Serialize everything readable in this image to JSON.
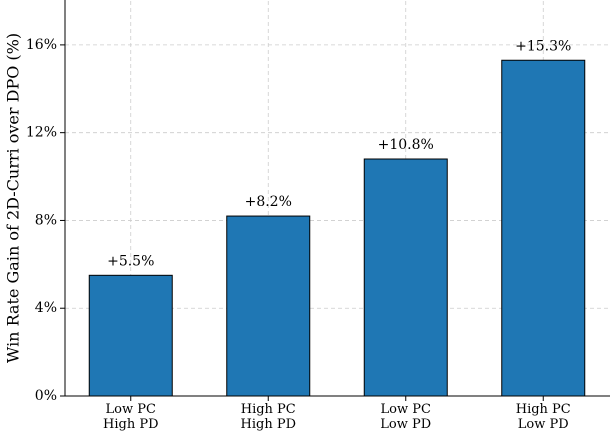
{
  "chart_data": {
    "type": "bar",
    "y_label": "Win Rate Gain of 2D-Curri over DPO (%)",
    "categories": [
      "Low PC\nHigh PD",
      "High PC\nHigh PD",
      "Low PC\nLow PD",
      "High PC\nLow PD"
    ],
    "values": [
      5.5,
      8.2,
      10.8,
      15.3
    ],
    "value_labels": [
      "+5.5%",
      "+8.2%",
      "+10.8%",
      "+15.3%"
    ],
    "color": "#1f77b4",
    "ylim": [
      0,
      18
    ],
    "yticks": [
      {
        "value": 0,
        "label": "0%"
      },
      {
        "value": 4,
        "label": "4%"
      },
      {
        "value": 8,
        "label": "8%"
      },
      {
        "value": 12,
        "label": "12%"
      },
      {
        "value": 16,
        "label": "16%"
      }
    ],
    "grid": true
  }
}
